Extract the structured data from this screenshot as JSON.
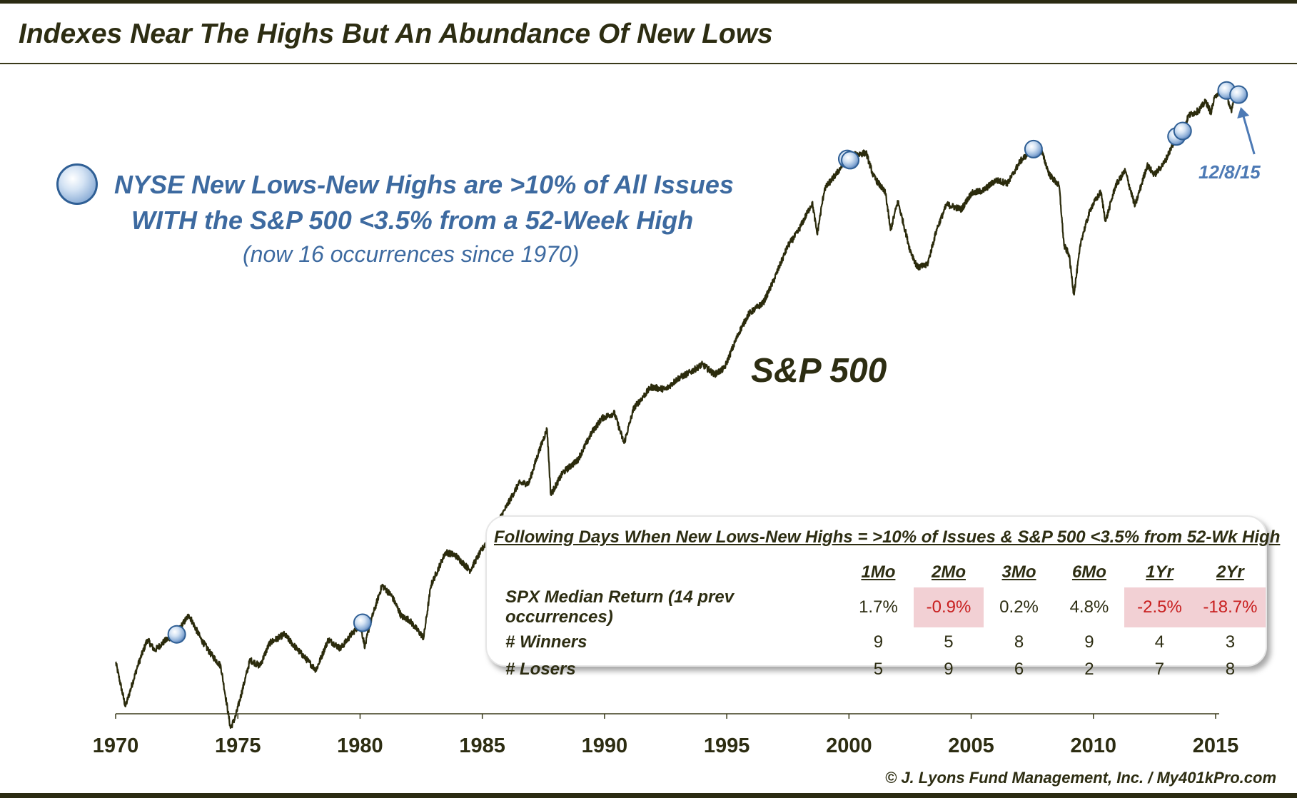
{
  "title": "Indexes Near The Highs But An Abundance Of New Lows",
  "legend": {
    "line1": "NYSE New Lows-New Highs are >10% of All Issues",
    "line2": "WITH the S&P 500 <3.5% from a 52-Week High",
    "line3": "(now 16 occurrences since 1970)"
  },
  "series_label": "S&P 500",
  "annotation": "12/8/15",
  "stats": {
    "title": "Following Days When New Lows-New Highs = >10% of Issues & S&P 500 <3.5% from 52-Wk High",
    "columns": [
      "1Mo",
      "2Mo",
      "3Mo",
      "6Mo",
      "1Yr",
      "2Yr"
    ],
    "rows": [
      {
        "label": "SPX Median Return (14 prev occurrences)",
        "values": [
          "1.7%",
          "-0.9%",
          "0.2%",
          "4.8%",
          "-2.5%",
          "-18.7%"
        ],
        "negative": [
          false,
          true,
          false,
          false,
          true,
          true
        ]
      },
      {
        "label": "# Winners",
        "values": [
          "9",
          "5",
          "8",
          "9",
          "4",
          "3"
        ],
        "negative": [
          false,
          false,
          false,
          false,
          false,
          false
        ]
      },
      {
        "label": "# Losers",
        "values": [
          "5",
          "9",
          "6",
          "2",
          "7",
          "8"
        ],
        "negative": [
          false,
          false,
          false,
          false,
          false,
          false
        ]
      }
    ]
  },
  "copyright": "© J. Lyons Fund Management, Inc. / My401kPro.com",
  "colors": {
    "line": "#2b2b0c",
    "title": "#2d2d12",
    "legend_text": "#3d6aa0",
    "negative_bg": "#f2d0d4",
    "negative_text": "#c81e1e",
    "marker_fill": "#b9cfeb",
    "marker_border": "#2f5f95"
  },
  "chart_data": {
    "type": "line",
    "title": "S&P 500",
    "scale": "log",
    "x_ticks": [
      1970,
      1975,
      1980,
      1985,
      1990,
      1995,
      2000,
      2005,
      2010,
      2015
    ],
    "xlim": [
      1970,
      2016
    ],
    "series": [
      {
        "name": "S&P 500",
        "points": [
          [
            1970.0,
            92
          ],
          [
            1970.4,
            72
          ],
          [
            1970.9,
            90
          ],
          [
            1971.3,
            104
          ],
          [
            1971.6,
            98
          ],
          [
            1972.0,
            103
          ],
          [
            1972.5,
            108
          ],
          [
            1973.0,
            119
          ],
          [
            1973.5,
            104
          ],
          [
            1973.9,
            96
          ],
          [
            1974.3,
            90
          ],
          [
            1974.7,
            64
          ],
          [
            1974.9,
            68
          ],
          [
            1975.5,
            93
          ],
          [
            1975.9,
            90
          ],
          [
            1976.3,
            102
          ],
          [
            1976.9,
            107
          ],
          [
            1977.4,
            99
          ],
          [
            1977.9,
            92
          ],
          [
            1978.2,
            88
          ],
          [
            1978.7,
            104
          ],
          [
            1979.2,
            99
          ],
          [
            1979.7,
            108
          ],
          [
            1980.0,
            113
          ],
          [
            1980.2,
            100
          ],
          [
            1980.4,
            113
          ],
          [
            1980.9,
            140
          ],
          [
            1981.3,
            132
          ],
          [
            1981.7,
            118
          ],
          [
            1982.0,
            116
          ],
          [
            1982.6,
            105
          ],
          [
            1982.9,
            140
          ],
          [
            1983.5,
            168
          ],
          [
            1983.9,
            165
          ],
          [
            1984.5,
            152
          ],
          [
            1984.9,
            167
          ],
          [
            1985.4,
            187
          ],
          [
            1985.9,
            211
          ],
          [
            1986.5,
            245
          ],
          [
            1986.9,
            245
          ],
          [
            1987.3,
            290
          ],
          [
            1987.65,
            330
          ],
          [
            1987.8,
            230
          ],
          [
            1988.3,
            260
          ],
          [
            1988.9,
            278
          ],
          [
            1989.5,
            325
          ],
          [
            1989.9,
            350
          ],
          [
            1990.4,
            360
          ],
          [
            1990.8,
            305
          ],
          [
            1991.2,
            370
          ],
          [
            1991.9,
            415
          ],
          [
            1992.5,
            410
          ],
          [
            1993.0,
            435
          ],
          [
            1993.5,
            450
          ],
          [
            1994.0,
            470
          ],
          [
            1994.5,
            445
          ],
          [
            1994.9,
            460
          ],
          [
            1995.5,
            560
          ],
          [
            1995.9,
            620
          ],
          [
            1996.5,
            660
          ],
          [
            1996.9,
            740
          ],
          [
            1997.5,
            900
          ],
          [
            1997.9,
            970
          ],
          [
            1998.5,
            1140
          ],
          [
            1998.7,
            960
          ],
          [
            1999.0,
            1230
          ],
          [
            1999.5,
            1340
          ],
          [
            1999.95,
            1460
          ],
          [
            2000.2,
            1480
          ],
          [
            2000.7,
            1500
          ],
          [
            2001.0,
            1320
          ],
          [
            2001.5,
            1200
          ],
          [
            2001.7,
            980
          ],
          [
            2002.0,
            1150
          ],
          [
            2002.5,
            880
          ],
          [
            2002.8,
            800
          ],
          [
            2003.2,
            810
          ],
          [
            2003.6,
            990
          ],
          [
            2004.0,
            1130
          ],
          [
            2004.6,
            1100
          ],
          [
            2005.0,
            1200
          ],
          [
            2005.5,
            1220
          ],
          [
            2006.0,
            1290
          ],
          [
            2006.5,
            1270
          ],
          [
            2007.0,
            1430
          ],
          [
            2007.5,
            1530
          ],
          [
            2007.8,
            1560
          ],
          [
            2008.2,
            1330
          ],
          [
            2008.6,
            1250
          ],
          [
            2008.8,
            900
          ],
          [
            2009.0,
            860
          ],
          [
            2009.2,
            690
          ],
          [
            2009.5,
            930
          ],
          [
            2009.9,
            1110
          ],
          [
            2010.3,
            1210
          ],
          [
            2010.5,
            1030
          ],
          [
            2010.9,
            1250
          ],
          [
            2011.3,
            1360
          ],
          [
            2011.7,
            1120
          ],
          [
            2012.2,
            1400
          ],
          [
            2012.5,
            1330
          ],
          [
            2012.9,
            1420
          ],
          [
            2013.4,
            1640
          ],
          [
            2013.65,
            1690
          ],
          [
            2013.9,
            1840
          ],
          [
            2014.3,
            1890
          ],
          [
            2014.6,
            1990
          ],
          [
            2014.8,
            1870
          ],
          [
            2015.0,
            2060
          ],
          [
            2015.4,
            2120
          ],
          [
            2015.65,
            1870
          ],
          [
            2015.8,
            2100
          ],
          [
            2015.94,
            2063
          ]
        ]
      }
    ],
    "occurrences": [
      [
        1972.5,
        107
      ],
      [
        1980.1,
        114
      ],
      [
        1999.93,
        1450
      ],
      [
        2000.05,
        1440
      ],
      [
        2007.55,
        1530
      ],
      [
        2013.4,
        1640
      ],
      [
        2013.65,
        1690
      ],
      [
        2015.45,
        2110
      ],
      [
        2015.94,
        2063
      ]
    ],
    "annotations": [
      {
        "text": "12/8/15",
        "x": 2015.94
      }
    ]
  }
}
